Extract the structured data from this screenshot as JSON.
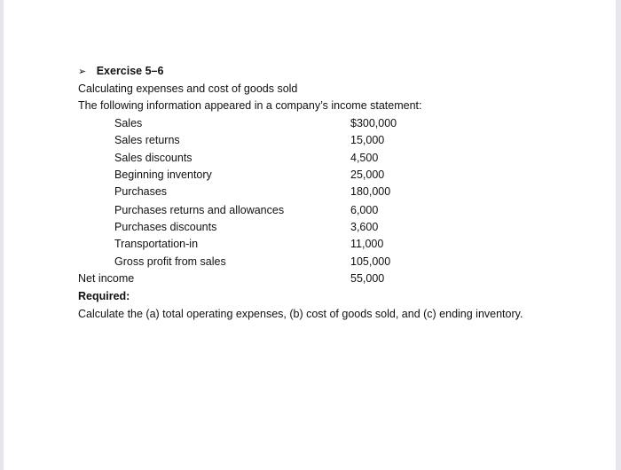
{
  "heading": {
    "bullet": "➢",
    "title": "Exercise 5–6"
  },
  "subtitle": "Calculating expenses and cost of goods sold",
  "intro": "The following information appeared in a company’s income statement:",
  "items": [
    {
      "label": "Sales",
      "value": "$300,000"
    },
    {
      "label": "Sales returns",
      "value": "15,000"
    },
    {
      "label": "Sales discounts",
      "value": "4,500"
    },
    {
      "label": "Beginning inventory",
      "value": "25,000"
    },
    {
      "label": "Purchases",
      "value": "180,000"
    },
    {
      "label": "Purchases returns and allowances",
      "value": "6,000"
    },
    {
      "label": "Purchases discounts",
      "value": "3,600"
    },
    {
      "label": "Transportation-in",
      "value": "11,000"
    },
    {
      "label": "Gross profit from sales",
      "value": "105,000"
    }
  ],
  "net_income": {
    "label": "Net income",
    "value": "55,000"
  },
  "required_label": "Required:",
  "required_text": "Calculate the (a) total operating expenses, (b) cost of goods sold, and (c) ending inventory."
}
